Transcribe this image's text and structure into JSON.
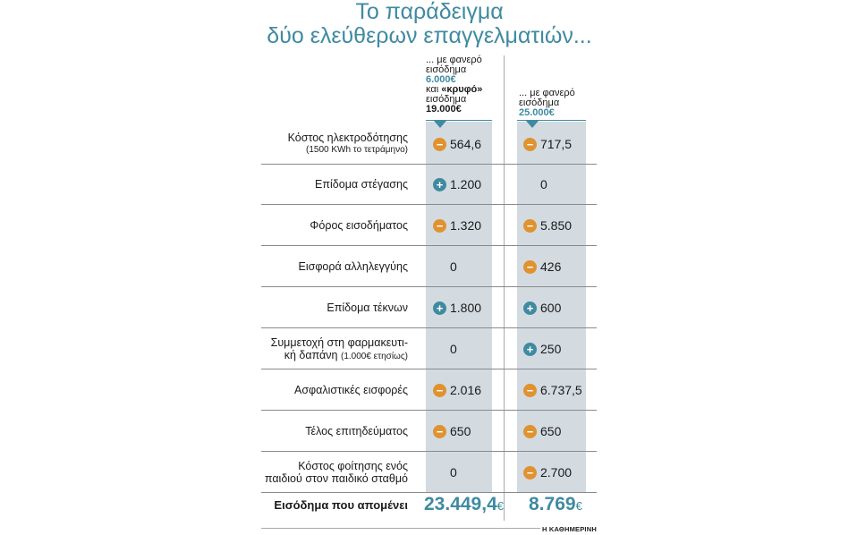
{
  "title": {
    "line1": "Το παράδειγμα",
    "line2": "δύο ελεύθερων επαγγελματιών..."
  },
  "headers": {
    "col1": {
      "line1": "... με φανερό",
      "line2": "εισόδημα",
      "amount1": "6.000€",
      "line3_prefix": "και ",
      "line3_bold": "«κρυφό»",
      "line4": "εισόδημα",
      "amount2": "19.000€"
    },
    "col2": {
      "line1": "... με φανερό",
      "line2": "εισόδημα",
      "amount": "25.000€"
    }
  },
  "rows": [
    {
      "label": "Κόστος ηλεκτροδότησης",
      "sublabel": "(1500 KWh το τετράμηνο)",
      "v1": "564,6",
      "s1": "minus",
      "v2": "717,5",
      "s2": "minus"
    },
    {
      "label": "Επίδομα στέγασης",
      "sublabel": "",
      "v1": "1.200",
      "s1": "plus",
      "v2": "0",
      "s2": "none"
    },
    {
      "label": "Φόρος εισοδήματος",
      "sublabel": "",
      "v1": "1.320",
      "s1": "minus",
      "v2": "5.850",
      "s2": "minus"
    },
    {
      "label": "Εισφορά αλληλεγγύης",
      "sublabel": "",
      "v1": "0",
      "s1": "none",
      "v2": "426",
      "s2": "minus"
    },
    {
      "label": "Επίδομα τέκνων",
      "sublabel": "",
      "v1": "1.800",
      "s1": "plus",
      "v2": "600",
      "s2": "plus"
    },
    {
      "label": "Συμμετοχή στη φαρμακευτι-",
      "label2": "κή δαπάνη",
      "sublabel": "(1.000€ ετησίως)",
      "v1": "0",
      "s1": "none",
      "v2": "250",
      "s2": "plus"
    },
    {
      "label": "Ασφαλιστικές εισφορές",
      "sublabel": "",
      "v1": "2.016",
      "s1": "minus",
      "v2": "6.737,5",
      "s2": "minus"
    },
    {
      "label": "Τέλος επιτηδεύματος",
      "sublabel": "",
      "v1": "650",
      "s1": "minus",
      "v2": "650",
      "s2": "minus"
    },
    {
      "label": "Κόστος φοίτησης ενός",
      "label2": "παιδιού στον παιδικό σταθμό",
      "sublabel": "",
      "v1": "0",
      "s1": "none",
      "v2": "2.700",
      "s2": "minus"
    }
  ],
  "totals": {
    "label": "Εισόδημα που απομένει",
    "v1": "23.449,4",
    "v2": "8.769",
    "currency": "€"
  },
  "source": "Η ΚΑΘΗΜΕΡΙΝΗ",
  "colors": {
    "accent": "#3f8aa1",
    "minus": "#e0922f",
    "column_bg": "#d3dbe1"
  }
}
